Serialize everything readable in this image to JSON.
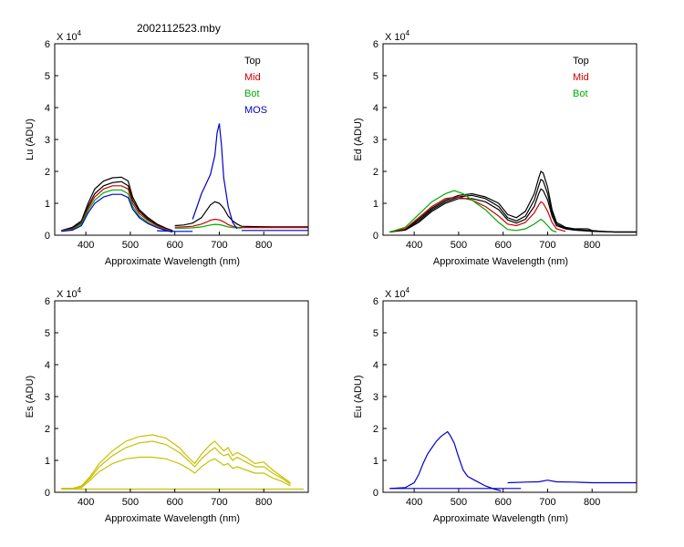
{
  "figure_title": "2002112523.mby",
  "colors": {
    "Top": "#000000",
    "Mid": "#cc0000",
    "Bot": "#00aa00",
    "MOS": "#0000cc",
    "Es": "#c8c000",
    "Eu": "#0000cc"
  },
  "chart_data": [
    {
      "id": "lu",
      "type": "line",
      "xlabel": "Approximate Wavelength (nm)",
      "ylabel": "Lu (ADU)",
      "xlim": [
        330,
        900
      ],
      "ylim": [
        0,
        6
      ],
      "xticks": [
        "400",
        "500",
        "600",
        "700",
        "800"
      ],
      "xtick_values": [
        400,
        500,
        600,
        700,
        800
      ],
      "yticks": [
        "0",
        "1",
        "2",
        "3",
        "4",
        "5",
        "6"
      ],
      "multiplier": "X 10",
      "legend": [
        {
          "label": "Top",
          "color": "#000000"
        },
        {
          "label": "Mid",
          "color": "#cc0000"
        },
        {
          "label": "Bot",
          "color": "#00aa00"
        },
        {
          "label": "MOS",
          "color": "#0000cc"
        }
      ],
      "series": [
        {
          "name": "Top",
          "color": "#000000",
          "x": [
            345,
            370,
            390,
            405,
            420,
            440,
            460,
            480,
            495,
            505,
            520,
            540,
            560,
            580,
            595
          ],
          "y": [
            0.15,
            0.25,
            0.45,
            1.0,
            1.45,
            1.7,
            1.8,
            1.82,
            1.7,
            1.2,
            0.8,
            0.55,
            0.35,
            0.22,
            0.15
          ]
        },
        {
          "name": "Top",
          "color": "#000000",
          "x": [
            345,
            370,
            390,
            405,
            420,
            440,
            460,
            480,
            495,
            505,
            520,
            540,
            560,
            580,
            595
          ],
          "y": [
            0.15,
            0.22,
            0.4,
            0.9,
            1.3,
            1.55,
            1.65,
            1.68,
            1.55,
            1.1,
            0.75,
            0.5,
            0.32,
            0.2,
            0.14
          ]
        },
        {
          "name": "Mid",
          "color": "#cc0000",
          "x": [
            345,
            370,
            390,
            405,
            420,
            440,
            460,
            480,
            495,
            505,
            520,
            540,
            560,
            580,
            595
          ],
          "y": [
            0.14,
            0.2,
            0.38,
            0.85,
            1.2,
            1.45,
            1.55,
            1.55,
            1.45,
            1.0,
            0.68,
            0.46,
            0.3,
            0.19,
            0.13
          ]
        },
        {
          "name": "Bot",
          "color": "#00aa00",
          "x": [
            345,
            370,
            390,
            405,
            420,
            440,
            460,
            480,
            495,
            505,
            520,
            540,
            560,
            580,
            595
          ],
          "y": [
            0.13,
            0.18,
            0.35,
            0.78,
            1.1,
            1.33,
            1.42,
            1.42,
            1.3,
            0.9,
            0.6,
            0.4,
            0.26,
            0.17,
            0.12
          ]
        },
        {
          "name": "MOS",
          "color": "#0000cc",
          "x": [
            345,
            370,
            390,
            405,
            420,
            440,
            460,
            480,
            495,
            505,
            520,
            540,
            560,
            580,
            595
          ],
          "y": [
            0.12,
            0.16,
            0.3,
            0.7,
            1.0,
            1.2,
            1.28,
            1.28,
            1.18,
            0.82,
            0.55,
            0.36,
            0.24,
            0.15,
            0.1
          ]
        },
        {
          "name": "Top",
          "color": "#000000",
          "x": [
            600,
            620,
            640,
            660,
            670,
            680,
            690,
            700,
            710,
            720,
            730,
            740,
            750,
            780,
            820,
            860,
            900
          ],
          "y": [
            0.3,
            0.32,
            0.38,
            0.55,
            0.75,
            0.95,
            1.05,
            1.0,
            0.85,
            0.6,
            0.45,
            0.35,
            0.28,
            0.27,
            0.26,
            0.26,
            0.26
          ]
        },
        {
          "name": "Mid",
          "color": "#cc0000",
          "x": [
            600,
            620,
            640,
            660,
            670,
            680,
            690,
            700,
            710,
            720,
            730,
            740,
            750,
            780,
            820,
            860,
            900
          ],
          "y": [
            0.25,
            0.26,
            0.28,
            0.35,
            0.4,
            0.47,
            0.5,
            0.48,
            0.42,
            0.33,
            0.28,
            0.25,
            0.24,
            0.24,
            0.24,
            0.24,
            0.24
          ]
        },
        {
          "name": "Bot",
          "color": "#00aa00",
          "x": [
            600,
            620,
            640,
            660,
            670,
            680,
            690,
            700,
            710,
            720,
            730,
            740,
            750
          ],
          "y": [
            0.22,
            0.22,
            0.23,
            0.26,
            0.29,
            0.32,
            0.34,
            0.33,
            0.3,
            0.26,
            0.24,
            0.23,
            0.22
          ]
        },
        {
          "name": "MOS",
          "color": "#0000cc",
          "x": [
            640,
            650,
            660,
            670,
            680,
            690,
            695,
            700,
            705,
            710,
            720,
            730,
            740
          ],
          "y": [
            0.5,
            0.9,
            1.3,
            1.6,
            1.9,
            2.5,
            3.2,
            3.5,
            2.8,
            1.8,
            0.9,
            0.4,
            0.2
          ]
        },
        {
          "name": "MOS",
          "color": "#0000cc",
          "x": [
            560,
            580,
            600,
            620,
            640
          ],
          "y": [
            0.14,
            0.13,
            0.12,
            0.12,
            0.12
          ]
        },
        {
          "name": "MOS",
          "color": "#0000cc",
          "x": [
            750,
            800,
            850,
            900
          ],
          "y": [
            0.15,
            0.15,
            0.15,
            0.15
          ]
        }
      ]
    },
    {
      "id": "ed",
      "type": "line",
      "xlabel": "Approximate Wavelength (nm)",
      "ylabel": "Ed  (ADU)",
      "xlim": [
        330,
        900
      ],
      "ylim": [
        0,
        6
      ],
      "xticks": [
        "400",
        "500",
        "600",
        "700",
        "800"
      ],
      "xtick_values": [
        400,
        500,
        600,
        700,
        800
      ],
      "yticks": [
        "0",
        "1",
        "2",
        "3",
        "4",
        "5",
        "6"
      ],
      "multiplier": "X 10",
      "legend": [
        {
          "label": "Top",
          "color": "#000000"
        },
        {
          "label": "Mid",
          "color": "#cc0000"
        },
        {
          "label": "Bot",
          "color": "#00aa00"
        }
      ],
      "series": [
        {
          "name": "Top",
          "color": "#000000",
          "x": [
            345,
            380,
            410,
            440,
            470,
            500,
            530,
            560,
            590,
            610,
            630,
            650,
            670,
            680,
            685,
            690,
            700,
            710,
            720,
            740,
            760,
            790,
            800,
            820,
            850,
            900
          ],
          "y": [
            0.1,
            0.2,
            0.5,
            0.85,
            1.1,
            1.25,
            1.3,
            1.2,
            1.0,
            0.65,
            0.55,
            0.75,
            1.3,
            1.8,
            2.0,
            1.95,
            1.5,
            0.8,
            0.4,
            0.25,
            0.2,
            0.2,
            0.15,
            0.12,
            0.1,
            0.1
          ]
        },
        {
          "name": "Top",
          "color": "#000000",
          "x": [
            345,
            380,
            410,
            440,
            470,
            500,
            530,
            560,
            590,
            610,
            630,
            650,
            670,
            680,
            685,
            690,
            700,
            710,
            720,
            740,
            760,
            800,
            850,
            900
          ],
          "y": [
            0.1,
            0.18,
            0.45,
            0.8,
            1.05,
            1.2,
            1.25,
            1.15,
            0.9,
            0.55,
            0.45,
            0.6,
            1.1,
            1.55,
            1.75,
            1.7,
            1.3,
            0.7,
            0.35,
            0.22,
            0.18,
            0.14,
            0.1,
            0.1
          ]
        },
        {
          "name": "Top",
          "color": "#000000",
          "x": [
            345,
            380,
            410,
            440,
            470,
            500,
            530,
            560,
            590,
            610,
            630,
            650,
            670,
            680,
            685,
            690,
            700,
            710,
            720,
            740,
            760,
            800,
            850,
            900
          ],
          "y": [
            0.1,
            0.16,
            0.4,
            0.75,
            1.0,
            1.15,
            1.15,
            1.05,
            0.8,
            0.48,
            0.38,
            0.5,
            0.9,
            1.3,
            1.45,
            1.4,
            1.1,
            0.6,
            0.3,
            0.2,
            0.16,
            0.12,
            0.1,
            0.1
          ]
        },
        {
          "name": "Mid",
          "color": "#cc0000",
          "x": [
            345,
            380,
            410,
            440,
            470,
            500,
            530,
            560,
            590,
            610,
            630,
            650,
            670,
            680,
            685,
            690,
            700,
            710,
            720,
            740
          ],
          "y": [
            0.1,
            0.2,
            0.55,
            0.9,
            1.15,
            1.2,
            1.1,
            0.9,
            0.6,
            0.35,
            0.3,
            0.4,
            0.7,
            0.95,
            1.05,
            1.0,
            0.75,
            0.4,
            0.2,
            0.12
          ]
        },
        {
          "name": "Bot",
          "color": "#00aa00",
          "x": [
            345,
            380,
            410,
            440,
            470,
            490,
            510,
            530,
            560,
            590,
            610,
            630,
            650,
            670,
            680,
            685,
            690,
            700,
            710,
            720
          ],
          "y": [
            0.1,
            0.25,
            0.65,
            1.05,
            1.3,
            1.4,
            1.3,
            1.1,
            0.8,
            0.4,
            0.18,
            0.15,
            0.2,
            0.35,
            0.45,
            0.5,
            0.45,
            0.3,
            0.15,
            0.1
          ]
        }
      ]
    },
    {
      "id": "es",
      "type": "line",
      "xlabel": "Approximate Wavelength (nm)",
      "ylabel": "Es  (ADU)",
      "xlim": [
        330,
        900
      ],
      "ylim": [
        0,
        6
      ],
      "xticks": [
        "400",
        "500",
        "600",
        "700",
        "800"
      ],
      "xtick_values": [
        400,
        500,
        600,
        700,
        800
      ],
      "yticks": [
        "0",
        "1",
        "2",
        "3",
        "4",
        "5",
        "6"
      ],
      "multiplier": "X 10",
      "legend": [],
      "series": [
        {
          "name": "Es",
          "color": "#c8c000",
          "x": [
            345,
            370,
            390,
            410,
            430,
            460,
            490,
            520,
            550,
            580,
            610,
            630,
            645,
            660,
            680,
            690,
            700,
            710,
            720,
            730,
            740,
            760,
            780,
            800,
            820,
            840,
            860
          ],
          "y": [
            0.12,
            0.12,
            0.2,
            0.5,
            0.9,
            1.3,
            1.6,
            1.75,
            1.8,
            1.7,
            1.4,
            1.1,
            0.9,
            1.2,
            1.5,
            1.6,
            1.45,
            1.3,
            1.4,
            1.15,
            1.25,
            1.1,
            0.9,
            0.95,
            0.7,
            0.5,
            0.3
          ]
        },
        {
          "name": "Es",
          "color": "#c8c000",
          "x": [
            345,
            370,
            390,
            410,
            430,
            460,
            490,
            520,
            550,
            580,
            610,
            630,
            645,
            660,
            680,
            690,
            700,
            710,
            720,
            730,
            740,
            760,
            780,
            800,
            820,
            840,
            860
          ],
          "y": [
            0.12,
            0.12,
            0.18,
            0.45,
            0.8,
            1.15,
            1.4,
            1.55,
            1.6,
            1.5,
            1.25,
            1.0,
            0.8,
            1.05,
            1.3,
            1.4,
            1.25,
            1.15,
            1.2,
            1.0,
            1.1,
            0.95,
            0.8,
            0.8,
            0.6,
            0.45,
            0.25
          ]
        },
        {
          "name": "Es",
          "color": "#c8c000",
          "x": [
            345,
            370,
            390,
            410,
            430,
            460,
            490,
            520,
            550,
            580,
            610,
            630,
            645,
            660,
            680,
            690,
            700,
            710,
            720,
            730,
            740,
            760,
            780,
            800,
            820,
            840,
            860
          ],
          "y": [
            0.12,
            0.12,
            0.15,
            0.38,
            0.65,
            0.9,
            1.05,
            1.1,
            1.1,
            1.05,
            0.9,
            0.75,
            0.6,
            0.8,
            1.0,
            1.05,
            0.95,
            0.85,
            0.9,
            0.75,
            0.8,
            0.7,
            0.6,
            0.6,
            0.45,
            0.35,
            0.2
          ]
        },
        {
          "name": "Es",
          "color": "#c8c000",
          "x": [
            345,
            400,
            500,
            600,
            700,
            800,
            890
          ],
          "y": [
            0.1,
            0.1,
            0.1,
            0.1,
            0.1,
            0.1,
            0.1
          ]
        }
      ]
    },
    {
      "id": "eu",
      "type": "line",
      "xlabel": "Approximate Wavelength (nm)",
      "ylabel": "Eu  (ADU)",
      "xlim": [
        330,
        900
      ],
      "ylim": [
        0,
        6
      ],
      "xticks": [
        "400",
        "500",
        "600",
        "700",
        "800"
      ],
      "xtick_values": [
        400,
        500,
        600,
        700,
        800
      ],
      "yticks": [
        "0",
        "1",
        "2",
        "3",
        "4",
        "5",
        "6"
      ],
      "multiplier": "X 10",
      "legend": [],
      "series": [
        {
          "name": "Eu",
          "color": "#0000cc",
          "x": [
            345,
            380,
            400,
            410,
            420,
            430,
            440,
            450,
            460,
            470,
            475,
            480,
            490,
            500,
            510,
            520,
            540,
            560,
            580,
            595
          ],
          "y": [
            0.12,
            0.15,
            0.3,
            0.55,
            0.9,
            1.2,
            1.4,
            1.6,
            1.75,
            1.85,
            1.9,
            1.8,
            1.55,
            1.1,
            0.7,
            0.5,
            0.35,
            0.2,
            0.1,
            0.05
          ]
        },
        {
          "name": "Eu",
          "color": "#0000cc",
          "x": [
            345,
            400,
            500,
            600,
            640
          ],
          "y": [
            0.12,
            0.12,
            0.12,
            0.12,
            0.12
          ]
        },
        {
          "name": "Eu",
          "color": "#0000cc",
          "x": [
            610,
            650,
            680,
            700,
            720,
            760,
            800,
            850,
            900
          ],
          "y": [
            0.3,
            0.32,
            0.33,
            0.38,
            0.33,
            0.32,
            0.3,
            0.3,
            0.3
          ]
        }
      ]
    }
  ]
}
